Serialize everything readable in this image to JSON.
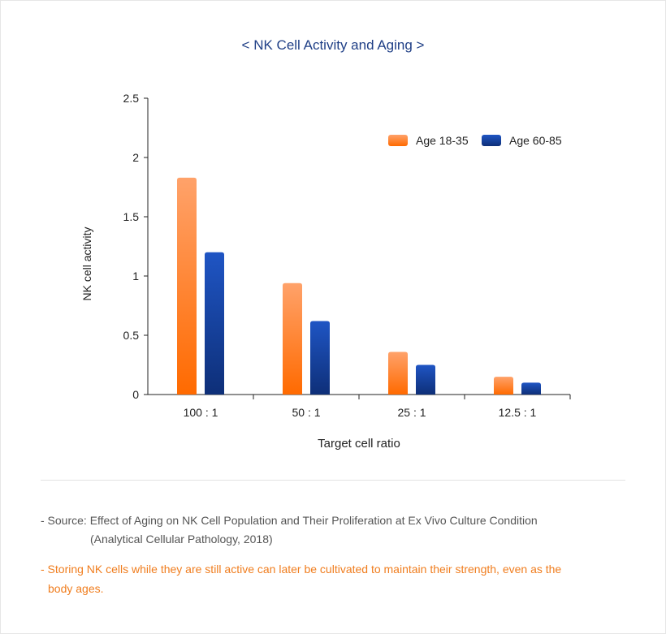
{
  "chart_data": {
    "type": "bar",
    "title": "< NK Cell Activity and Aging >",
    "xlabel": "Target cell ratio",
    "ylabel": "NK cell activity",
    "categories": [
      "100 : 1",
      "50 : 1",
      "25 : 1",
      "12.5 : 1"
    ],
    "yticks": [
      "0",
      "0.5",
      "1",
      "1.5",
      "2",
      "2.5"
    ],
    "ylim": [
      0,
      2.5
    ],
    "legend_position": "top-right",
    "series": [
      {
        "name": "Age 18-35",
        "values": [
          1.83,
          0.94,
          0.36,
          0.15
        ],
        "color": "#ff7a1a"
      },
      {
        "name": "Age 60-85",
        "values": [
          1.2,
          0.62,
          0.25,
          0.1
        ],
        "color": "#1b47a3"
      }
    ]
  },
  "footer": {
    "source_line1": "- Source: Effect of Aging on NK Cell Population and Their Proliferation at Ex Vivo Culture Condition",
    "source_line2": "(Analytical Cellular Pathology, 2018)",
    "note_line1": "- Storing NK cells while they are still active can later be cultivated to maintain their strength, even as the",
    "note_line2": "body ages."
  }
}
